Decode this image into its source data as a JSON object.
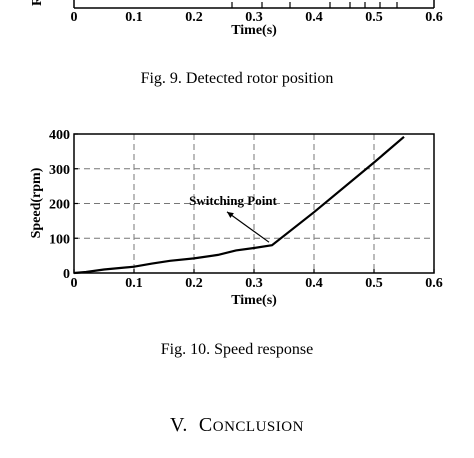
{
  "top_figure": {
    "xtick_labels": [
      "0",
      "0.1",
      "0.2",
      "0.3",
      "0.4",
      "0.5",
      "0.6"
    ],
    "xlabel": "Time(s)",
    "ylabel_fragment": "R"
  },
  "fig9_caption": "Fig. 9. Detected rotor position",
  "chart_data": {
    "type": "line",
    "title": "",
    "xlabel": "Time(s)",
    "ylabel": "Speed(rpm)",
    "xlim": [
      0,
      0.6
    ],
    "ylim": [
      0,
      400
    ],
    "xticks": [
      "0",
      "0.1",
      "0.2",
      "0.3",
      "0.4",
      "0.5",
      "0.6"
    ],
    "yticks": [
      "0",
      "100",
      "200",
      "300",
      "400"
    ],
    "grid": true,
    "series": [
      {
        "x": [
          0,
          0.02,
          0.05,
          0.1,
          0.13,
          0.16,
          0.2,
          0.24,
          0.27,
          0.3,
          0.33,
          0.4,
          0.5,
          0.55
        ],
        "y": [
          0,
          3,
          10,
          18,
          27,
          35,
          42,
          52,
          65,
          72,
          80,
          175,
          318,
          392
        ]
      }
    ],
    "annotation": {
      "text": "Switching Point",
      "target_x": 0.33,
      "target_y": 80
    }
  },
  "fig10_caption": "Fig. 10. Speed response",
  "section_heading": {
    "numeral": "V.",
    "first_letter": "C",
    "rest": "ONCLUSION"
  }
}
